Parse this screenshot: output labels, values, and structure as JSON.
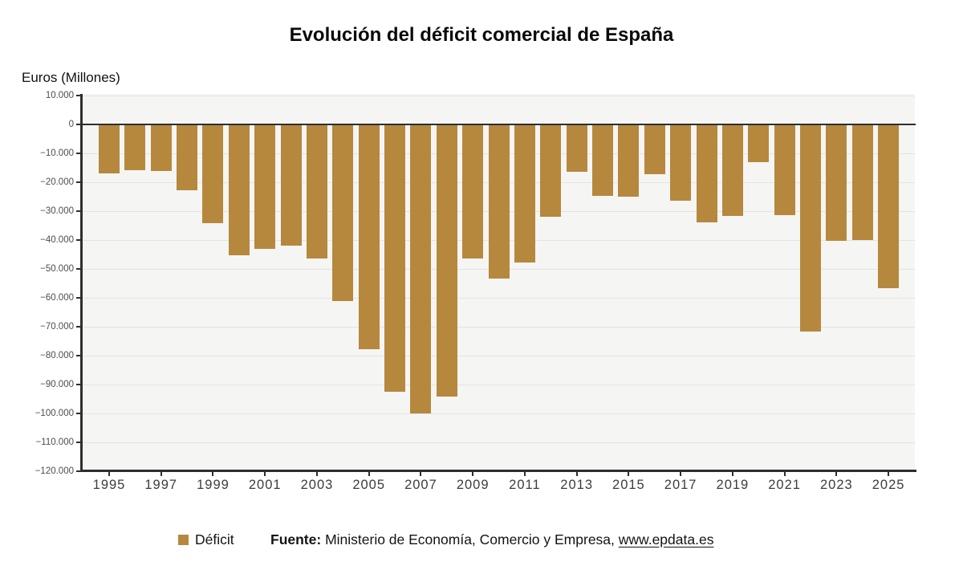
{
  "chart_data": {
    "type": "bar",
    "title": "Evolución del déficit comercial de España",
    "ylabel": "Euros (Millones)",
    "xlabel": "",
    "grid": true,
    "legend_position": "bottom",
    "ylim": [
      -120000,
      10000
    ],
    "ytick_step": 10000,
    "ytick_labels": [
      "10.000",
      "0",
      "−10.000",
      "−20.000",
      "−30.000",
      "−40.000",
      "−50.000",
      "−60.000",
      "−70.000",
      "−80.000",
      "−90.000",
      "−100.000",
      "−110.000",
      "−120.000"
    ],
    "xtick_labels": [
      "1995",
      "1997",
      "1999",
      "2001",
      "2003",
      "2005",
      "2007",
      "2009",
      "2011",
      "2013",
      "2015",
      "2017",
      "2019",
      "2021",
      "2023",
      "2025"
    ],
    "categories": [
      1995,
      1996,
      1997,
      1998,
      1999,
      2000,
      2001,
      2002,
      2003,
      2004,
      2005,
      2006,
      2007,
      2008,
      2009,
      2010,
      2011,
      2012,
      2013,
      2014,
      2015,
      2016,
      2017,
      2018,
      2019,
      2020,
      2021,
      2022,
      2023,
      2024,
      2025
    ],
    "series": [
      {
        "name": "Déficit",
        "values": [
          -17000,
          -15700,
          -16000,
          -22800,
          -34100,
          -45200,
          -43100,
          -41900,
          -46500,
          -61200,
          -77800,
          -92400,
          -100000,
          -94200,
          -46300,
          -53300,
          -47900,
          -31900,
          -16500,
          -24600,
          -24900,
          -17200,
          -26400,
          -34000,
          -31600,
          -13100,
          -31300,
          -71600,
          -40400,
          -40100,
          -56600
        ]
      }
    ],
    "bar_color": "#b6883e",
    "plot_bg_color": "#f5f5f3",
    "grid_color": "#e3e3e1",
    "axis_color": "#2e2e2e"
  },
  "footer": {
    "source_label": "Fuente:",
    "source_text": " Ministerio de Economía, Comercio y Empresa, ",
    "source_link": "www.epdata.es"
  }
}
